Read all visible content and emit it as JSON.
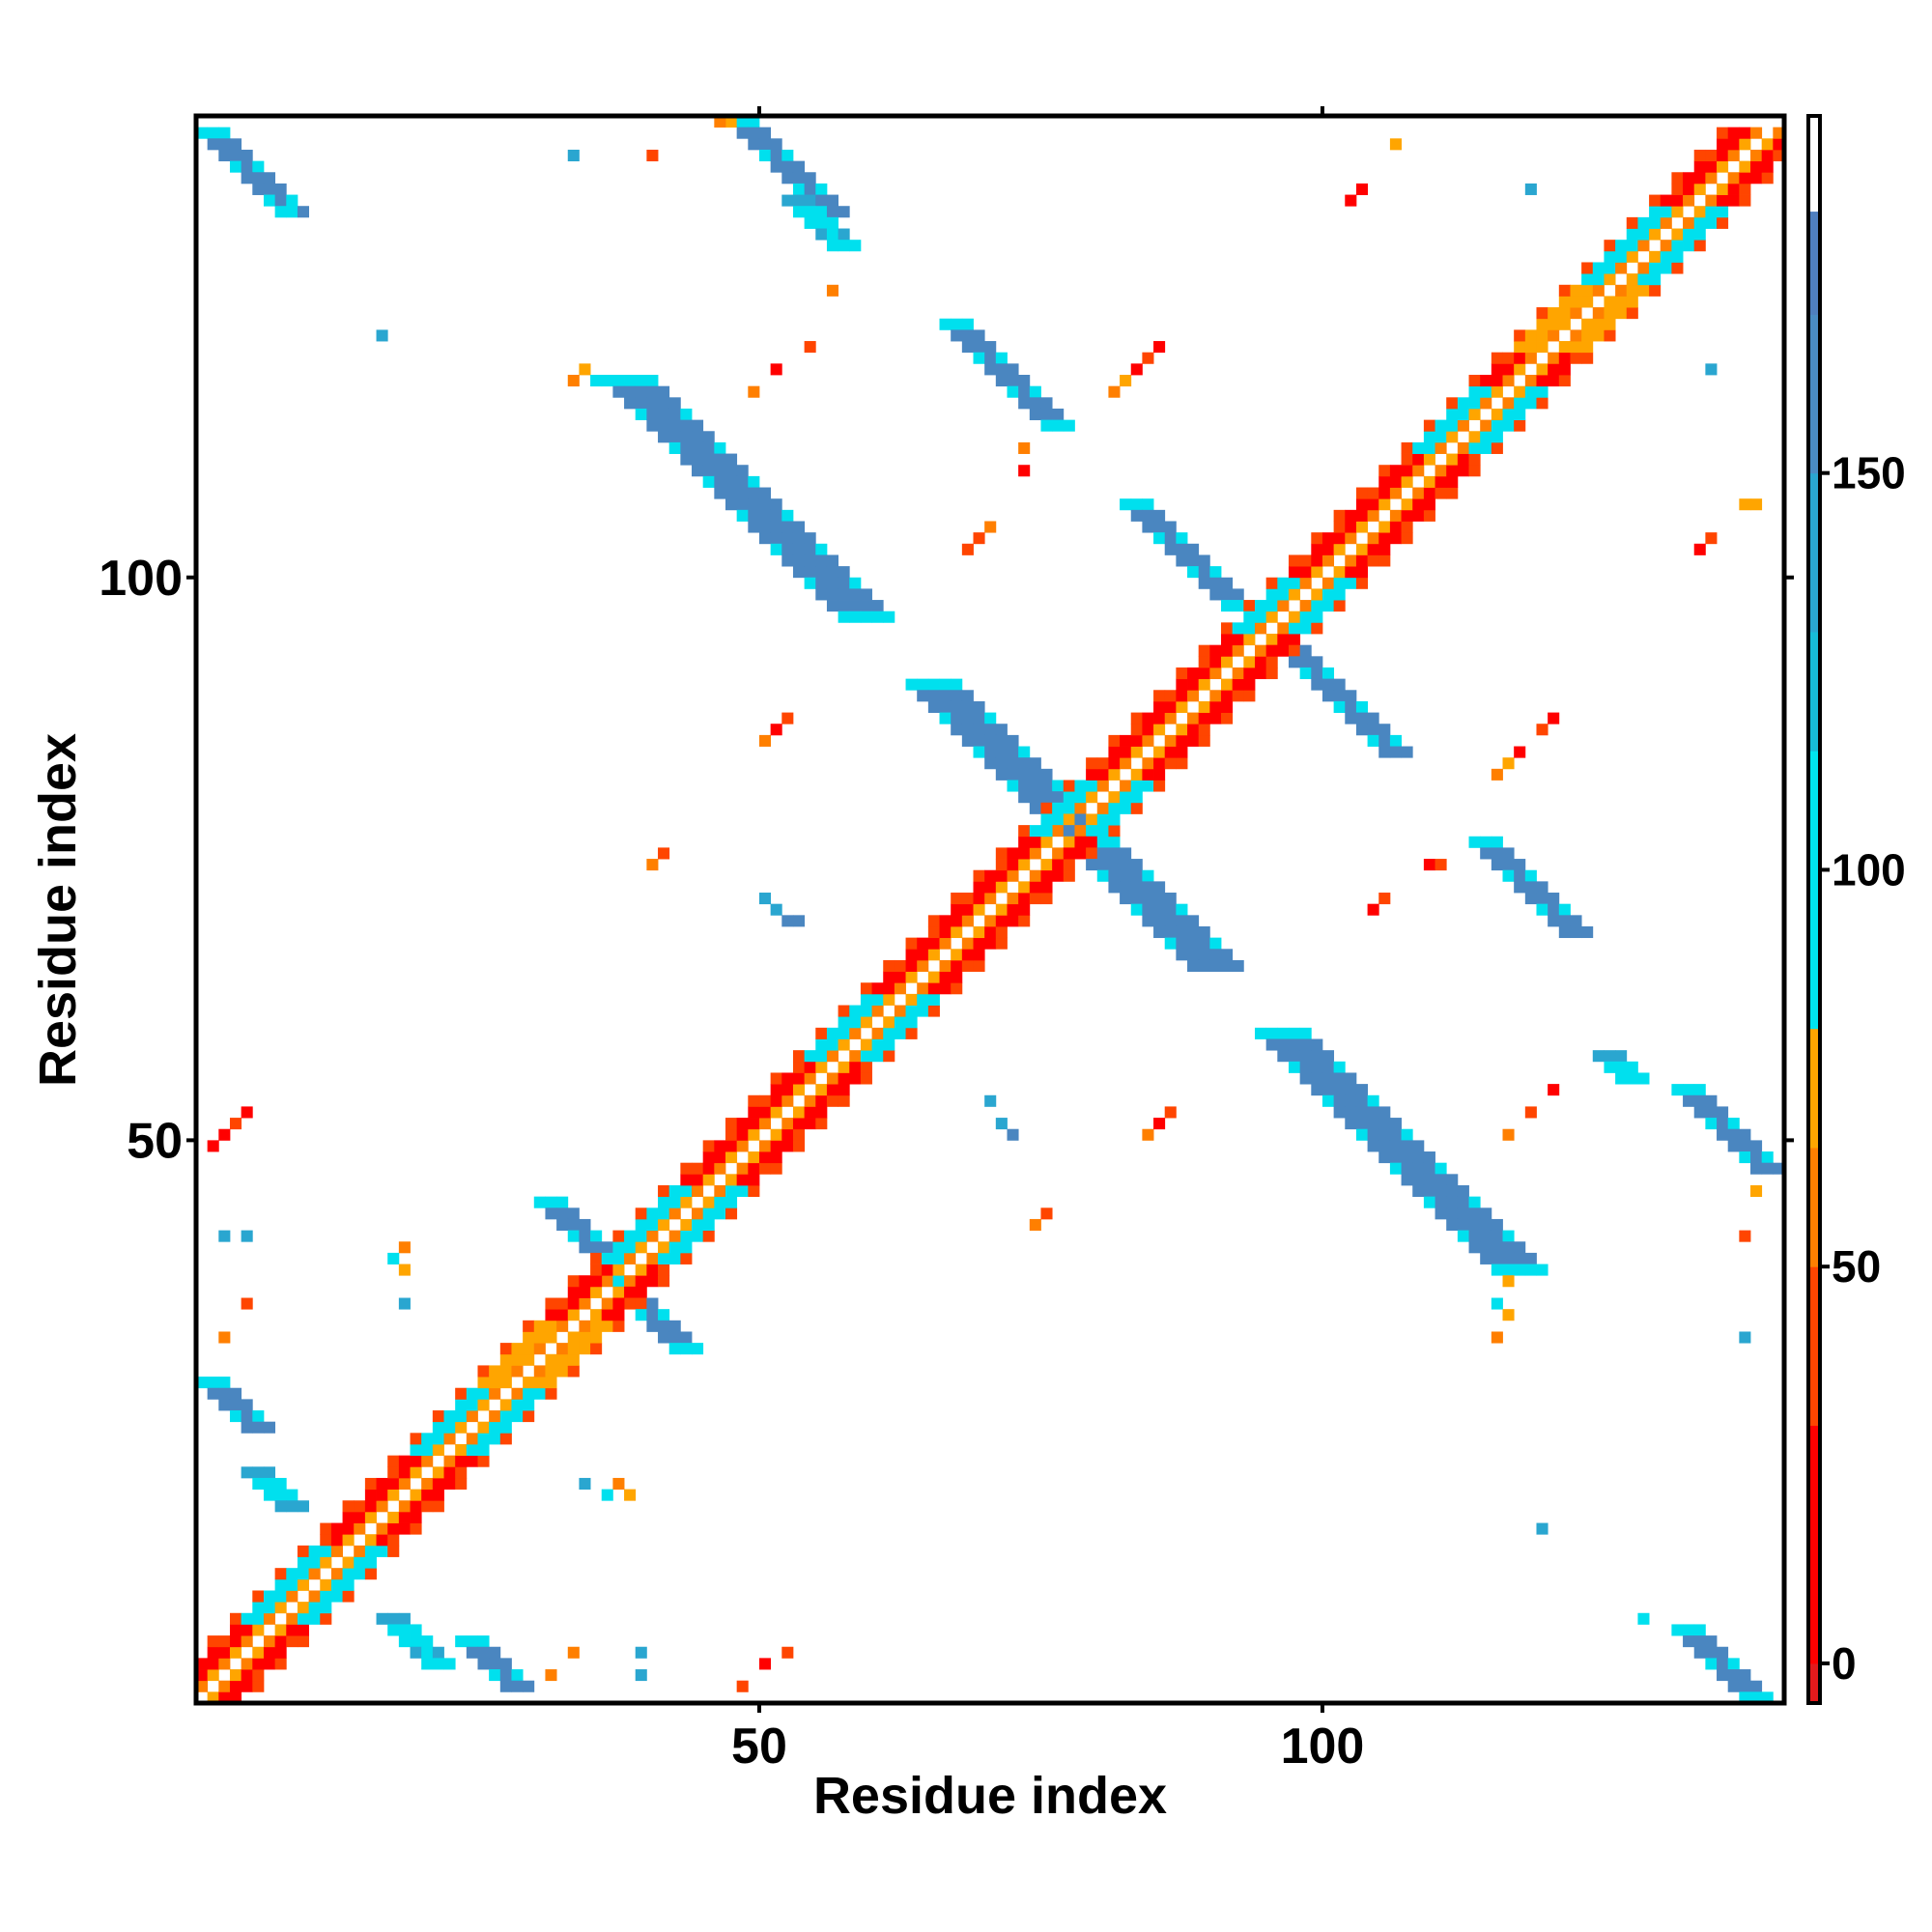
{
  "chart_data": {
    "type": "heatmap",
    "title": "",
    "xlabel": "Residue index",
    "ylabel": "Residue index",
    "xlim": [
      0,
      141
    ],
    "ylim": [
      0,
      141
    ],
    "x_ticks": [
      50,
      100
    ],
    "y_ticks": [
      50,
      100
    ],
    "colorbar": {
      "ticks": [
        0,
        50,
        100,
        150
      ],
      "range": [
        -5,
        195
      ],
      "bands": [
        {
          "from": -5,
          "to": 0,
          "color": "#e31a1c"
        },
        {
          "from": 0,
          "to": 30,
          "color": "#ff0000"
        },
        {
          "from": 30,
          "to": 50,
          "color": "#ff4500"
        },
        {
          "from": 50,
          "to": 65,
          "color": "#ff7f00"
        },
        {
          "from": 65,
          "to": 80,
          "color": "#ffa500"
        },
        {
          "from": 80,
          "to": 115,
          "color": "#00e5ee"
        },
        {
          "from": 115,
          "to": 130,
          "color": "#17bcd7"
        },
        {
          "from": 130,
          "to": 150,
          "color": "#2aa6d0"
        },
        {
          "from": 150,
          "to": 170,
          "color": "#4a8cc4"
        },
        {
          "from": 170,
          "to": 183,
          "color": "#4f7fbf"
        },
        {
          "from": 183,
          "to": 195,
          "color": "#ffffff"
        }
      ]
    },
    "palette": {
      "red": "#ff0000",
      "red_orange": "#ff4500",
      "orange": "#ff7f00",
      "light_orange": "#ffa500",
      "cyan": "#00e0ee",
      "light_blue": "#2aa6d0",
      "steel_blue": "#4a86c0"
    },
    "diagonal": {
      "start": 1,
      "end": 140,
      "width": 4,
      "pattern": [
        "orange",
        "white",
        "red",
        "red"
      ]
    },
    "diagonal_patches": [
      {
        "from": 8,
        "to": 14,
        "color": "cyan"
      },
      {
        "from": 23,
        "to": 28,
        "color": "cyan"
      },
      {
        "from": 29,
        "to": 34,
        "color": "light_orange"
      },
      {
        "from": 40,
        "to": 46,
        "color": "cyan"
      },
      {
        "from": 58,
        "to": 63,
        "color": "cyan"
      },
      {
        "from": 78,
        "to": 82,
        "color": "cyan"
      },
      {
        "from": 96,
        "to": 100,
        "color": "cyan"
      },
      {
        "from": 112,
        "to": 117,
        "color": "cyan"
      },
      {
        "from": 121,
        "to": 126,
        "color": "light_orange"
      },
      {
        "from": 127,
        "to": 133,
        "color": "cyan"
      }
    ],
    "anti_diagonal_bands": [
      {
        "x0": 2,
        "y0": 140,
        "x1": 8,
        "y1": 133,
        "w": 3,
        "color": "steel_blue",
        "edge": "cyan"
      },
      {
        "x0": 49,
        "y0": 141,
        "x1": 56,
        "y1": 133,
        "w": 3,
        "color": "steel_blue",
        "edge": "cyan"
      },
      {
        "x0": 39,
        "y0": 118,
        "x1": 60,
        "y1": 97,
        "w": 4,
        "color": "steel_blue",
        "edge": "cyan"
      },
      {
        "x0": 68,
        "y0": 123,
        "x1": 77,
        "y1": 114,
        "w": 3,
        "color": "steel_blue",
        "edge": "cyan"
      },
      {
        "x0": 66,
        "y0": 91,
        "x1": 79,
        "y1": 78,
        "w": 4,
        "color": "steel_blue",
        "edge": "cyan"
      },
      {
        "x0": 80,
        "y0": 77,
        "x1": 91,
        "y1": 66,
        "w": 4,
        "color": "steel_blue",
        "edge": "cyan"
      },
      {
        "x0": 84,
        "y0": 107,
        "x1": 93,
        "y1": 98,
        "w": 2,
        "color": "steel_blue",
        "edge": "cyan"
      },
      {
        "x0": 97,
        "y0": 95,
        "x1": 107,
        "y1": 85,
        "w": 2,
        "color": "steel_blue",
        "edge": "cyan"
      },
      {
        "x0": 97,
        "y0": 60,
        "x1": 118,
        "y1": 39,
        "w": 4,
        "color": "steel_blue",
        "edge": "cyan"
      },
      {
        "x0": 115,
        "y0": 77,
        "x1": 123,
        "y1": 69,
        "w": 3,
        "color": "steel_blue",
        "edge": "cyan"
      },
      {
        "x0": 133,
        "y0": 55,
        "x1": 140,
        "y1": 48,
        "w": 3,
        "color": "steel_blue",
        "edge": "cyan"
      },
      {
        "x0": 133,
        "y0": 7,
        "x1": 139,
        "y1": 1,
        "w": 3,
        "color": "steel_blue",
        "edge": "cyan"
      },
      {
        "x0": 2,
        "y0": 29,
        "x1": 6,
        "y1": 25,
        "w": 3,
        "color": "steel_blue",
        "edge": "cyan"
      },
      {
        "x0": 6,
        "y0": 21,
        "x1": 9,
        "y1": 18,
        "w": 3,
        "color": "cyan",
        "edge": "light_blue"
      },
      {
        "x0": 18,
        "y0": 8,
        "x1": 22,
        "y1": 4,
        "w": 3,
        "color": "cyan",
        "edge": "light_blue"
      },
      {
        "x0": 25,
        "y0": 6,
        "x1": 29,
        "y1": 2,
        "w": 3,
        "color": "steel_blue",
        "edge": "cyan"
      },
      {
        "x0": 32,
        "y0": 45,
        "x1": 36,
        "y1": 41,
        "w": 3,
        "color": "steel_blue",
        "edge": "cyan"
      },
      {
        "x0": 38,
        "y0": 38,
        "x1": 44,
        "y1": 32,
        "w": 3,
        "color": "steel_blue",
        "edge": "cyan"
      },
      {
        "x0": 54,
        "y0": 134,
        "x1": 58,
        "y1": 130,
        "w": 3,
        "color": "cyan",
        "edge": "light_blue"
      },
      {
        "x0": 126,
        "y0": 58,
        "x1": 128,
        "y1": 56,
        "w": 3,
        "color": "cyan",
        "edge": "light_blue"
      }
    ],
    "spots": [
      {
        "x": 34,
        "y": 138,
        "color": "light_blue"
      },
      {
        "x": 41,
        "y": 138,
        "color": "red_orange"
      },
      {
        "x": 47,
        "y": 141,
        "color": "orange"
      },
      {
        "x": 48,
        "y": 141,
        "color": "light_orange"
      },
      {
        "x": 8,
        "y": 133,
        "color": "cyan"
      },
      {
        "x": 9,
        "y": 133,
        "color": "cyan"
      },
      {
        "x": 17,
        "y": 122,
        "color": "light_blue"
      },
      {
        "x": 34,
        "y": 118,
        "color": "orange"
      },
      {
        "x": 35,
        "y": 119,
        "color": "light_orange"
      },
      {
        "x": 36,
        "y": 118,
        "color": "cyan"
      },
      {
        "x": 50,
        "y": 117,
        "color": "orange"
      },
      {
        "x": 52,
        "y": 119,
        "color": "red"
      },
      {
        "x": 55,
        "y": 121,
        "color": "red_orange"
      },
      {
        "x": 57,
        "y": 126,
        "color": "orange"
      },
      {
        "x": 74,
        "y": 112,
        "color": "orange"
      },
      {
        "x": 74,
        "y": 110,
        "color": "red"
      },
      {
        "x": 69,
        "y": 103,
        "color": "red_orange"
      },
      {
        "x": 70,
        "y": 104,
        "color": "red_orange"
      },
      {
        "x": 71,
        "y": 105,
        "color": "orange"
      },
      {
        "x": 82,
        "y": 117,
        "color": "orange"
      },
      {
        "x": 83,
        "y": 118,
        "color": "light_orange"
      },
      {
        "x": 84,
        "y": 119,
        "color": "red"
      },
      {
        "x": 85,
        "y": 120,
        "color": "red_orange"
      },
      {
        "x": 86,
        "y": 121,
        "color": "red"
      },
      {
        "x": 103,
        "y": 134,
        "color": "red"
      },
      {
        "x": 104,
        "y": 135,
        "color": "red"
      },
      {
        "x": 107,
        "y": 139,
        "color": "light_orange"
      },
      {
        "x": 119,
        "y": 135,
        "color": "light_blue"
      },
      {
        "x": 135,
        "y": 119,
        "color": "light_blue"
      },
      {
        "x": 134,
        "y": 103,
        "color": "red"
      },
      {
        "x": 135,
        "y": 104,
        "color": "red_orange"
      },
      {
        "x": 138,
        "y": 107,
        "color": "light_orange"
      },
      {
        "x": 139,
        "y": 107,
        "color": "light_orange"
      },
      {
        "x": 51,
        "y": 86,
        "color": "orange"
      },
      {
        "x": 52,
        "y": 87,
        "color": "red"
      },
      {
        "x": 53,
        "y": 88,
        "color": "red_orange"
      },
      {
        "x": 41,
        "y": 75,
        "color": "orange"
      },
      {
        "x": 42,
        "y": 76,
        "color": "red_orange"
      },
      {
        "x": 51,
        "y": 72,
        "color": "light_blue"
      },
      {
        "x": 52,
        "y": 71,
        "color": "light_blue"
      },
      {
        "x": 53,
        "y": 70,
        "color": "steel_blue"
      },
      {
        "x": 54,
        "y": 70,
        "color": "steel_blue"
      },
      {
        "x": 116,
        "y": 83,
        "color": "orange"
      },
      {
        "x": 117,
        "y": 84,
        "color": "light_orange"
      },
      {
        "x": 118,
        "y": 85,
        "color": "red"
      },
      {
        "x": 120,
        "y": 87,
        "color": "red_orange"
      },
      {
        "x": 121,
        "y": 88,
        "color": "red"
      },
      {
        "x": 105,
        "y": 71,
        "color": "red"
      },
      {
        "x": 106,
        "y": 72,
        "color": "red_orange"
      },
      {
        "x": 110,
        "y": 75,
        "color": "red"
      },
      {
        "x": 111,
        "y": 75,
        "color": "red_orange"
      },
      {
        "x": 71,
        "y": 54,
        "color": "light_blue"
      },
      {
        "x": 72,
        "y": 52,
        "color": "light_blue"
      },
      {
        "x": 73,
        "y": 51,
        "color": "steel_blue"
      },
      {
        "x": 85,
        "y": 51,
        "color": "orange"
      },
      {
        "x": 86,
        "y": 52,
        "color": "red"
      },
      {
        "x": 87,
        "y": 53,
        "color": "red_orange"
      },
      {
        "x": 75,
        "y": 43,
        "color": "orange"
      },
      {
        "x": 76,
        "y": 44,
        "color": "red_orange"
      },
      {
        "x": 117,
        "y": 51,
        "color": "orange"
      },
      {
        "x": 119,
        "y": 53,
        "color": "red_orange"
      },
      {
        "x": 121,
        "y": 55,
        "color": "red"
      },
      {
        "x": 139,
        "y": 46,
        "color": "light_orange"
      },
      {
        "x": 138,
        "y": 42,
        "color": "red_orange"
      },
      {
        "x": 138,
        "y": 33,
        "color": "light_blue"
      },
      {
        "x": 116,
        "y": 36,
        "color": "cyan"
      },
      {
        "x": 117,
        "y": 35,
        "color": "light_orange"
      },
      {
        "x": 116,
        "y": 33,
        "color": "orange"
      },
      {
        "x": 117,
        "y": 38,
        "color": "light_orange"
      },
      {
        "x": 2,
        "y": 50,
        "color": "red"
      },
      {
        "x": 3,
        "y": 51,
        "color": "red"
      },
      {
        "x": 4,
        "y": 52,
        "color": "red_orange"
      },
      {
        "x": 5,
        "y": 53,
        "color": "red"
      },
      {
        "x": 3,
        "y": 42,
        "color": "light_blue"
      },
      {
        "x": 5,
        "y": 42,
        "color": "light_blue"
      },
      {
        "x": 5,
        "y": 36,
        "color": "red_orange"
      },
      {
        "x": 3,
        "y": 33,
        "color": "orange"
      },
      {
        "x": 18,
        "y": 40,
        "color": "cyan"
      },
      {
        "x": 19,
        "y": 41,
        "color": "orange"
      },
      {
        "x": 19,
        "y": 39,
        "color": "light_orange"
      },
      {
        "x": 19,
        "y": 36,
        "color": "light_blue"
      },
      {
        "x": 35,
        "y": 20,
        "color": "light_blue"
      },
      {
        "x": 37,
        "y": 19,
        "color": "cyan"
      },
      {
        "x": 38,
        "y": 20,
        "color": "orange"
      },
      {
        "x": 39,
        "y": 19,
        "color": "light_orange"
      },
      {
        "x": 34,
        "y": 5,
        "color": "orange"
      },
      {
        "x": 32,
        "y": 3,
        "color": "orange"
      },
      {
        "x": 40,
        "y": 5,
        "color": "light_blue"
      },
      {
        "x": 40,
        "y": 3,
        "color": "light_blue"
      },
      {
        "x": 49,
        "y": 2,
        "color": "red_orange"
      },
      {
        "x": 51,
        "y": 4,
        "color": "red"
      },
      {
        "x": 53,
        "y": 5,
        "color": "red_orange"
      },
      {
        "x": 120,
        "y": 16,
        "color": "light_blue"
      },
      {
        "x": 129,
        "y": 8,
        "color": "cyan"
      }
    ]
  }
}
